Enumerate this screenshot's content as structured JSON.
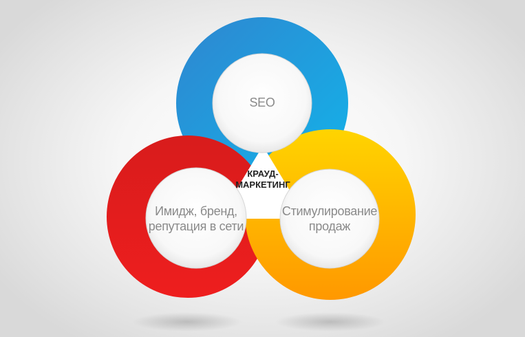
{
  "diagram": {
    "center_label_line1": "КРАУД-",
    "center_label_line2": "МАРКЕТИНГ",
    "rings": [
      {
        "id": "seo",
        "label_line1": "SEO",
        "label_line2": "",
        "color_start": "#2b8fd6",
        "color_end": "#19aee6"
      },
      {
        "id": "image",
        "label_line1": "Имидж, бренд,",
        "label_line2": "репутация в сети",
        "color_start": "#e02a2a",
        "color_end": "#c41616"
      },
      {
        "id": "sales",
        "label_line1": "Стимулирование",
        "label_line2": "продаж",
        "color_start": "#ffd200",
        "color_end": "#ff9a00"
      }
    ]
  }
}
